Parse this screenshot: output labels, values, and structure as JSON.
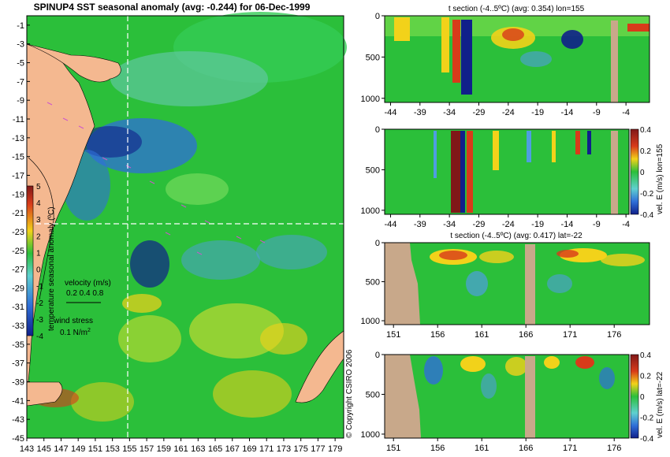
{
  "colors": {
    "land": "#f4b890",
    "sectionland": "#c8a88a",
    "ocean": "#2bbf3a",
    "warm": "#f2d21a",
    "hot": "#d83b1a",
    "cool": "#2f6fd8",
    "cold": "#10208a",
    "axis": "#000000",
    "dashline": "#ffffff",
    "vector": "#cc55cc",
    "coast": "#000000"
  },
  "chart_data": [
    {
      "type": "heatmap",
      "title": "SPINUP4 SST seasonal anomaly (avg: -0.244) for 06-Dec-1999",
      "xlim": [
        143,
        180
      ],
      "ylim": [
        -45,
        0
      ],
      "x_ticks": [
        "143",
        "145",
        "147",
        "149",
        "151",
        "153",
        "155",
        "157",
        "159",
        "161",
        "163",
        "165",
        "167",
        "169",
        "171",
        "173",
        "175",
        "177",
        "179"
      ],
      "y_ticks": [
        "-1",
        "-3",
        "-5",
        "-7",
        "-9",
        "-11",
        "-13",
        "-15",
        "-17",
        "-19",
        "-21",
        "-23",
        "-25",
        "-27",
        "-29",
        "-31",
        "-33",
        "-35",
        "-37",
        "-39",
        "-41",
        "-43",
        "-45"
      ],
      "section_lon": 155,
      "section_lat": -22,
      "colorbar": {
        "label": "temperature seasonal anomaly (ºC)",
        "ticks": [
          "5",
          "4",
          "3",
          "2",
          "1",
          "0",
          "-1",
          "-2",
          "-3",
          "-4"
        ],
        "range": [
          -4,
          5
        ]
      },
      "legend": {
        "velocity_label": "velocity (m/s)",
        "velocity_values": "0.2 0.4 0.8",
        "wind_label": "wind stress",
        "wind_value": "0.1 N/m",
        "wind_exp": "2"
      },
      "copyright": "© Copyright CSIRO 2006"
    },
    {
      "type": "heatmap",
      "title": "t section (-4..5ºC) (avg: 0.354) lon=155",
      "x_ticks": [
        "-44",
        "-39",
        "-34",
        "-29",
        "-24",
        "-19",
        "-14",
        "-9",
        "-4"
      ],
      "xlim": [
        -45,
        0
      ],
      "ylim": [
        0,
        1050
      ],
      "y_ticks": [
        "0",
        "500",
        "1000"
      ]
    },
    {
      "type": "heatmap",
      "title": "",
      "x_ticks": [
        "-44",
        "-39",
        "-34",
        "-29",
        "-24",
        "-19",
        "-14",
        "-9",
        "-4"
      ],
      "xlim": [
        -45,
        0
      ],
      "ylim": [
        0,
        1050
      ],
      "y_ticks": [
        "0",
        "500",
        "1000"
      ],
      "colorbar": {
        "label": "vel. E (m/s) lon=155",
        "ticks": [
          "0.4",
          "0.2",
          "0",
          "-0.2",
          "-0.4"
        ],
        "range": [
          -0.4,
          0.4
        ]
      }
    },
    {
      "type": "heatmap",
      "title": "t section (-4..5ºC) (avg: 0.417) lat=-22",
      "x_ticks": [
        "151",
        "156",
        "161",
        "166",
        "171",
        "176"
      ],
      "xlim": [
        150,
        180
      ],
      "ylim": [
        0,
        1050
      ],
      "y_ticks": [
        "0",
        "500",
        "1000"
      ]
    },
    {
      "type": "heatmap",
      "title": "",
      "x_ticks": [
        "151",
        "156",
        "161",
        "166",
        "171",
        "176"
      ],
      "xlim": [
        150,
        180
      ],
      "ylim": [
        0,
        1050
      ],
      "y_ticks": [
        "0",
        "500",
        "1000"
      ],
      "colorbar": {
        "label": "vel. E (m/s) lat=-22",
        "ticks": [
          "0.4",
          "0.2",
          "0",
          "-0.2",
          "-0.4"
        ],
        "range": [
          -0.4,
          0.4
        ]
      }
    }
  ]
}
